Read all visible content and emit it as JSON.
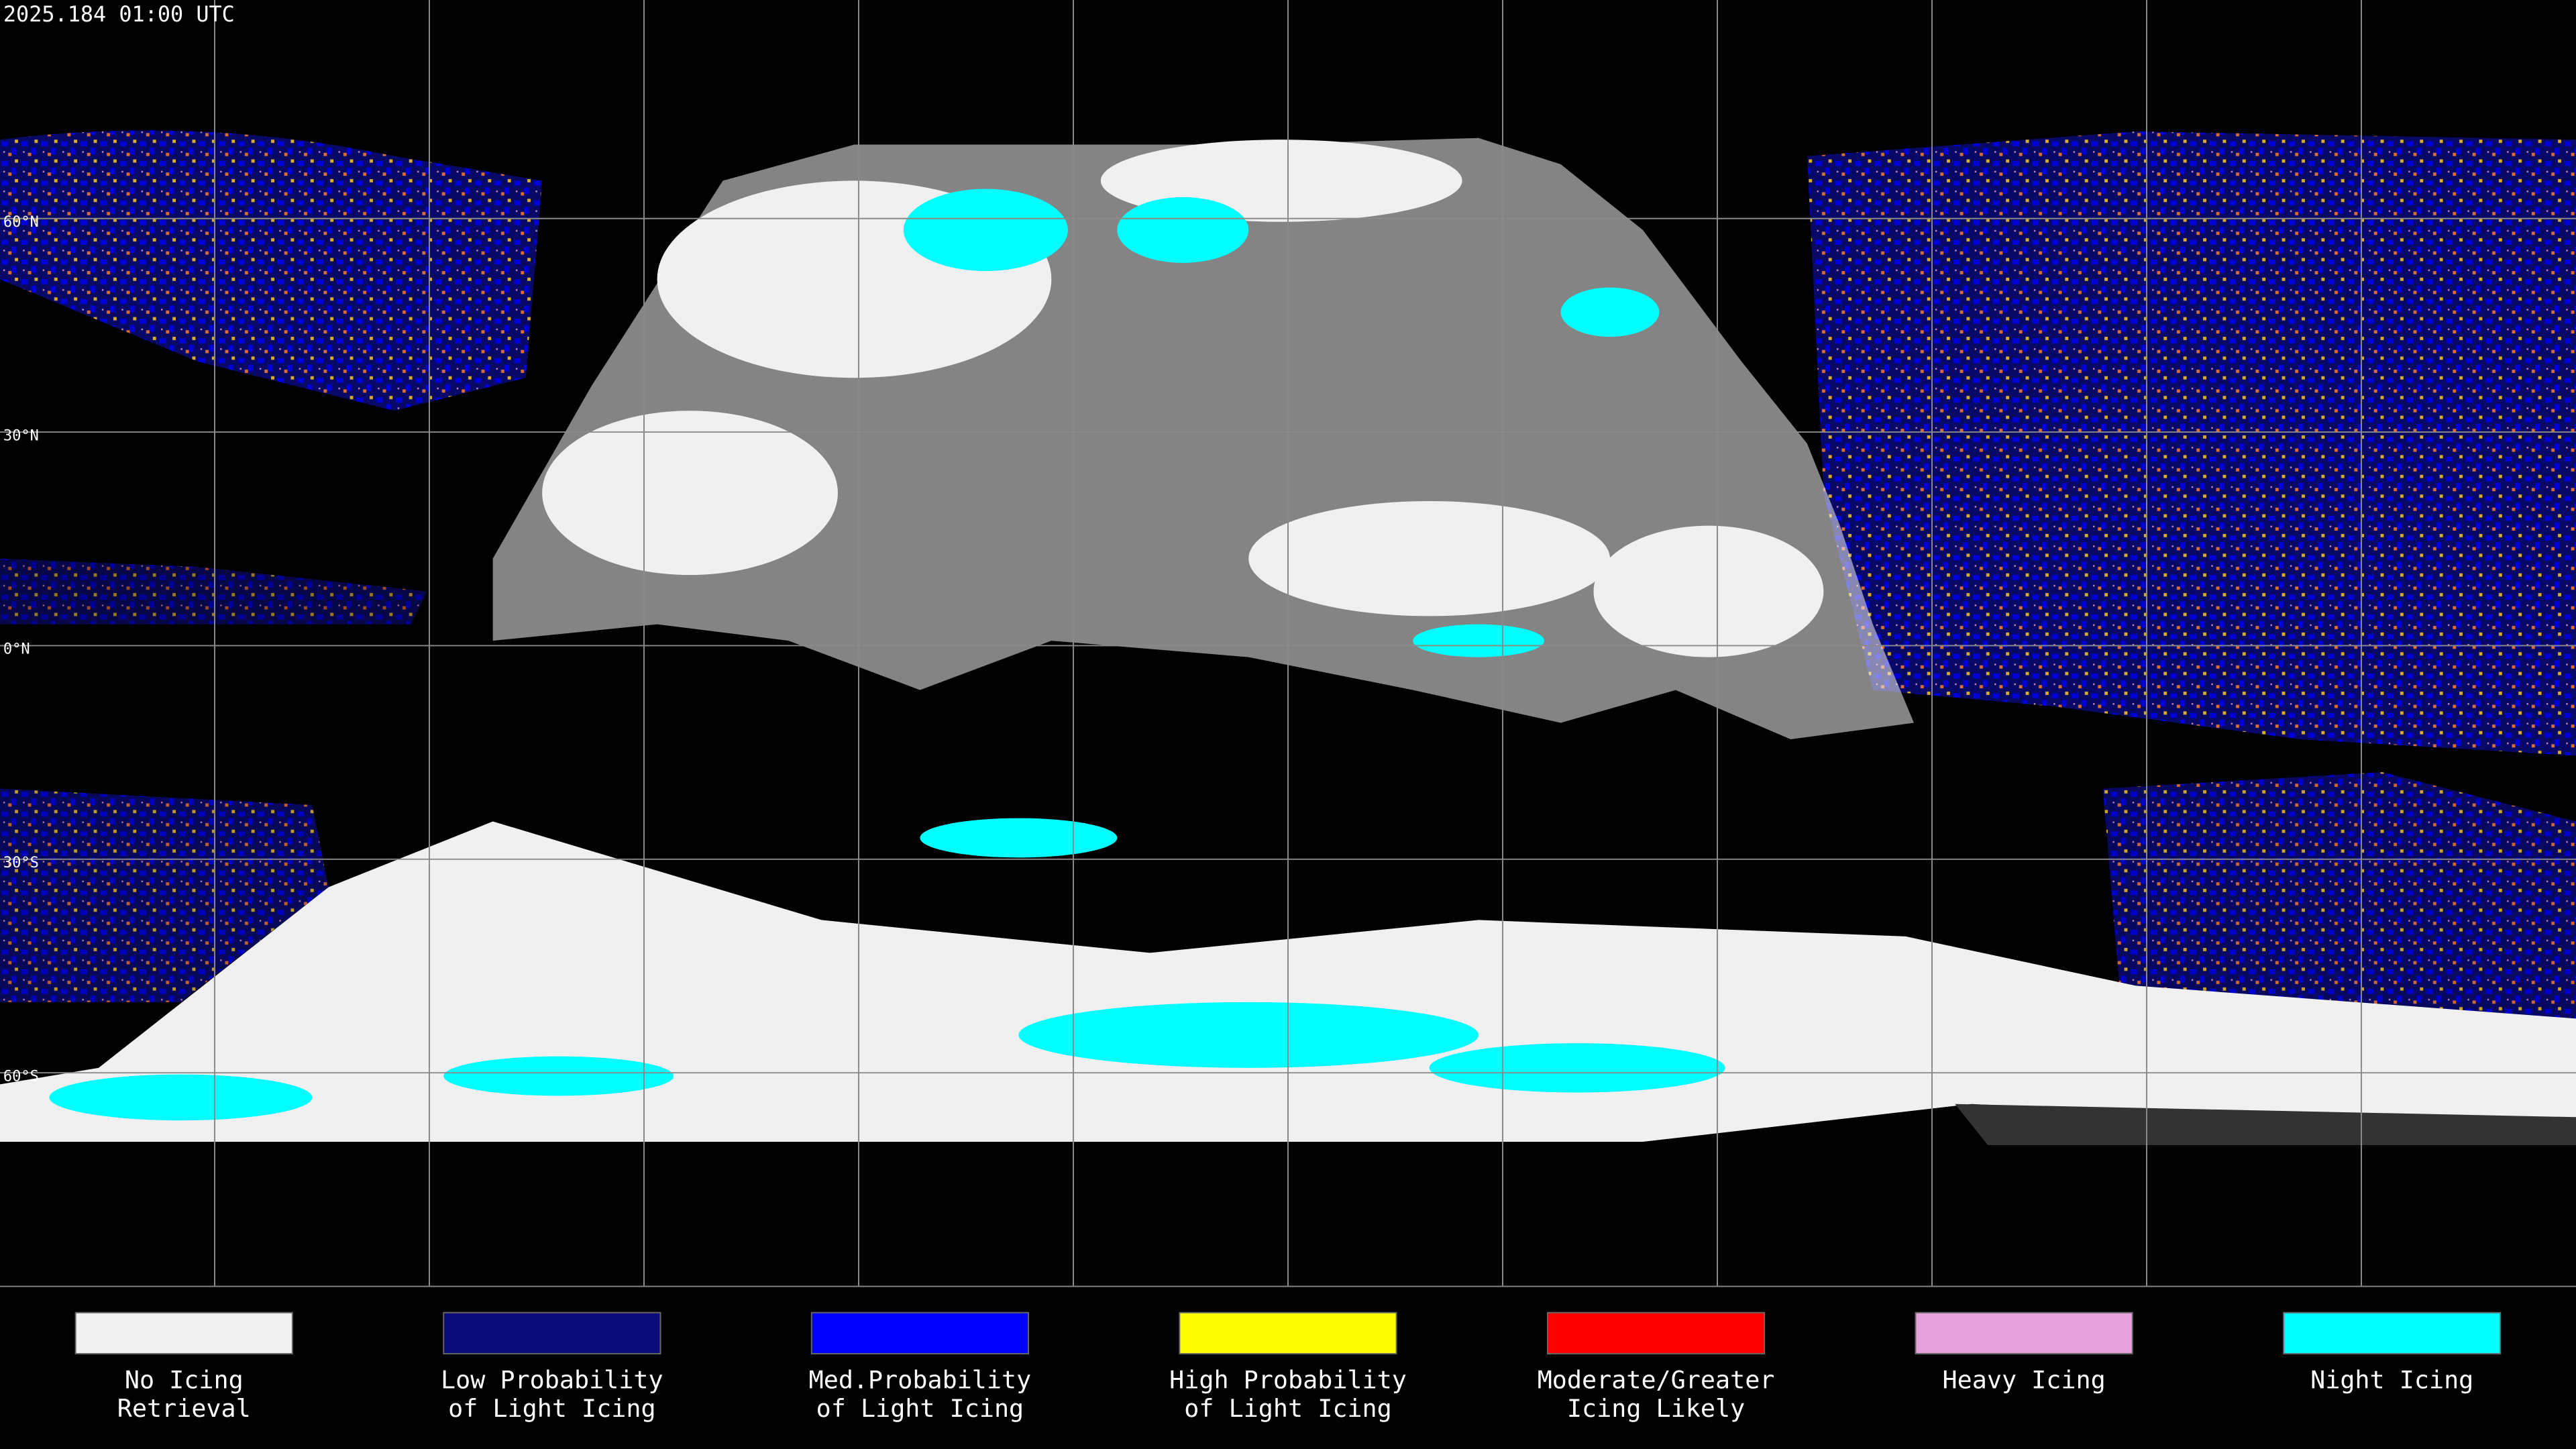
{
  "header": {
    "timestamp": "2025.184 01:00 UTC"
  },
  "map": {
    "latitude_lines": [
      {
        "value": 60,
        "label": "60°N"
      },
      {
        "value": 30,
        "label": "30°N"
      },
      {
        "value": 0,
        "label": "0°N"
      },
      {
        "value": -30,
        "label": "30°S"
      },
      {
        "value": -60,
        "label": "60°S"
      }
    ]
  },
  "legend": {
    "items": [
      {
        "lines": [
          "No Icing",
          "Retrieval"
        ],
        "color": "#f0f0f0"
      },
      {
        "lines": [
          "Low Probability",
          "of Light Icing"
        ],
        "color": "#0a0a78"
      },
      {
        "lines": [
          "Med.Probability",
          "of Light Icing"
        ],
        "color": "#0000ff"
      },
      {
        "lines": [
          "High Probability",
          "of Light Icing"
        ],
        "color": "#ffff00"
      },
      {
        "lines": [
          "Moderate/Greater",
          "Icing Likely"
        ],
        "color": "#ff0000"
      },
      {
        "lines": [
          "Heavy Icing"
        ],
        "color": "#e6a0dc"
      },
      {
        "lines": [
          "Night Icing"
        ],
        "color": "#00ffff"
      }
    ]
  }
}
